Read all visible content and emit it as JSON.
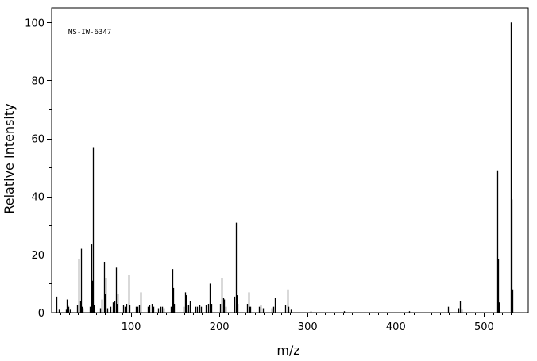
{
  "chart_data": {
    "type": "bar",
    "title": "",
    "annotation": "MS-IW-6347",
    "xlabel": "m/z",
    "ylabel": "Relative Intensity",
    "xlim": [
      10,
      550
    ],
    "ylim": [
      0,
      105
    ],
    "xticks": [
      100,
      200,
      300,
      400,
      500
    ],
    "yticks": [
      0,
      20,
      40,
      60,
      80,
      100
    ],
    "grid": false,
    "bar_color": "#000000",
    "peaks": [
      [
        15,
        5.5
      ],
      [
        18,
        1.0
      ],
      [
        26,
        1.0
      ],
      [
        27,
        4.5
      ],
      [
        28,
        2.5
      ],
      [
        29,
        2.0
      ],
      [
        31,
        1.0
      ],
      [
        39,
        2.5
      ],
      [
        41,
        18.5
      ],
      [
        42,
        4.0
      ],
      [
        43,
        22.0
      ],
      [
        44,
        2.0
      ],
      [
        45,
        1.5
      ],
      [
        53,
        2.0
      ],
      [
        55,
        23.5
      ],
      [
        56,
        11.0
      ],
      [
        57,
        57.0
      ],
      [
        58,
        2.5
      ],
      [
        65,
        1.5
      ],
      [
        67,
        4.5
      ],
      [
        69,
        17.5
      ],
      [
        70,
        6.5
      ],
      [
        71,
        12.0
      ],
      [
        73,
        1.5
      ],
      [
        77,
        2.0
      ],
      [
        79,
        3.5
      ],
      [
        81,
        4.0
      ],
      [
        83,
        15.5
      ],
      [
        84,
        3.0
      ],
      [
        85,
        6.5
      ],
      [
        91,
        2.5
      ],
      [
        93,
        2.0
      ],
      [
        95,
        3.0
      ],
      [
        97,
        13.0
      ],
      [
        98,
        2.5
      ],
      [
        105,
        2.0
      ],
      [
        107,
        2.0
      ],
      [
        109,
        2.5
      ],
      [
        111,
        7.0
      ],
      [
        119,
        2.0
      ],
      [
        121,
        2.5
      ],
      [
        123,
        3.0
      ],
      [
        125,
        2.0
      ],
      [
        131,
        1.5
      ],
      [
        133,
        2.0
      ],
      [
        135,
        2.0
      ],
      [
        137,
        1.5
      ],
      [
        145,
        2.0
      ],
      [
        147,
        15.0
      ],
      [
        148,
        8.5
      ],
      [
        149,
        3.0
      ],
      [
        159,
        2.0
      ],
      [
        161,
        7.0
      ],
      [
        162,
        6.0
      ],
      [
        163,
        2.5
      ],
      [
        165,
        2.5
      ],
      [
        167,
        4.0
      ],
      [
        173,
        2.0
      ],
      [
        175,
        2.0
      ],
      [
        177,
        2.5
      ],
      [
        179,
        2.0
      ],
      [
        185,
        2.5
      ],
      [
        187,
        3.0
      ],
      [
        189,
        10.0
      ],
      [
        190,
        2.5
      ],
      [
        191,
        3.0
      ],
      [
        201,
        3.0
      ],
      [
        203,
        12.0
      ],
      [
        204,
        5.0
      ],
      [
        205,
        4.5
      ],
      [
        207,
        2.0
      ],
      [
        217,
        5.5
      ],
      [
        219,
        31.0
      ],
      [
        220,
        6.0
      ],
      [
        221,
        3.0
      ],
      [
        231,
        3.0
      ],
      [
        233,
        7.0
      ],
      [
        234,
        2.0
      ],
      [
        235,
        2.0
      ],
      [
        245,
        2.0
      ],
      [
        247,
        2.5
      ],
      [
        249,
        1.5
      ],
      [
        259,
        1.5
      ],
      [
        261,
        2.0
      ],
      [
        263,
        5.0
      ],
      [
        275,
        2.5
      ],
      [
        277,
        8.0
      ],
      [
        278,
        2.0
      ],
      [
        281,
        1.0
      ],
      [
        303,
        0.5
      ],
      [
        341,
        0.5
      ],
      [
        415,
        0.5
      ],
      [
        459,
        2.0
      ],
      [
        471,
        1.5
      ],
      [
        473,
        4.0
      ],
      [
        474,
        1.0
      ],
      [
        515,
        49.0
      ],
      [
        516,
        18.5
      ],
      [
        517,
        3.5
      ],
      [
        530,
        100.0
      ],
      [
        531,
        39.0
      ],
      [
        532,
        8.0
      ]
    ]
  }
}
